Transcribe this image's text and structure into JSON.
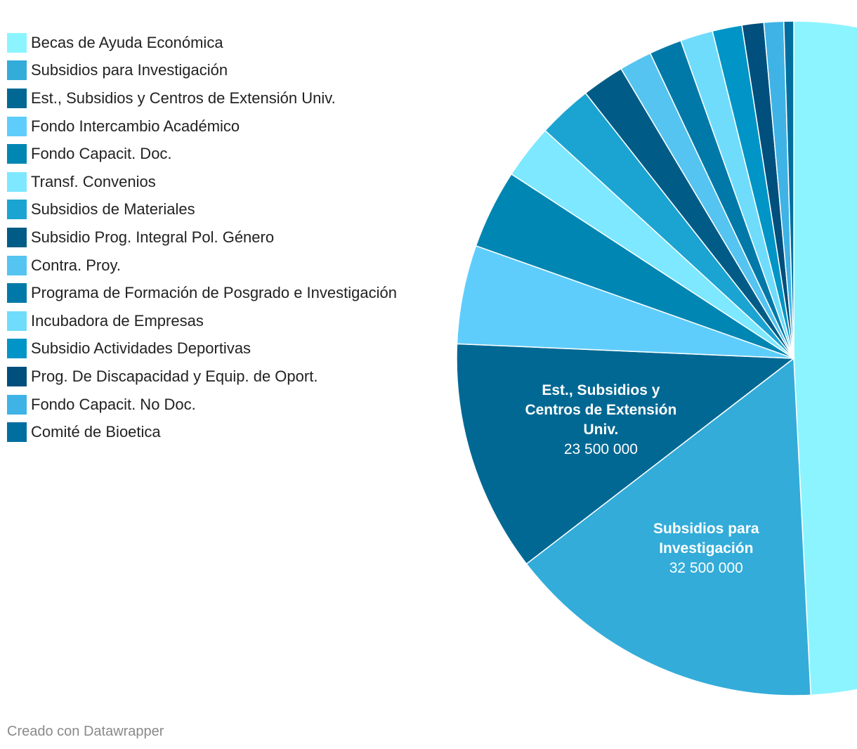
{
  "chart_data": {
    "type": "pie",
    "title": "",
    "slices": [
      {
        "label": "Becas de Ayuda Económica",
        "value": 104000000,
        "color": "#8cf4ff"
      },
      {
        "label": "Subsidios para Investigación",
        "value": 32500000,
        "color": "#33acd9",
        "display_value": "32 500 000"
      },
      {
        "label": "Est., Subsidios y Centros de Extensión Univ.",
        "value": 23500000,
        "color": "#006893",
        "display_value": "23 500 000"
      },
      {
        "label": "Fondo Intercambio Académico",
        "value": 10000000,
        "color": "#5fcdfc"
      },
      {
        "label": "Fondo Capacit. Doc.",
        "value": 8000000,
        "color": "#0086b3"
      },
      {
        "label": "Transf. Convenios",
        "value": 5500000,
        "color": "#7de8ff"
      },
      {
        "label": "Subsidios de Materiales",
        "value": 5500000,
        "color": "#1ba4d2"
      },
      {
        "label": "Subsidio Prog. Integral Pol. Género",
        "value": 4300000,
        "color": "#005c86"
      },
      {
        "label": "Contra. Proy.",
        "value": 3300000,
        "color": "#55c4f0"
      },
      {
        "label": "Programa de Formación de Posgrado e Investigación",
        "value": 3300000,
        "color": "#0079a8"
      },
      {
        "label": "Incubadora de Empresas",
        "value": 3300000,
        "color": "#70dcfb"
      },
      {
        "label": "Subsidio Actividades Deportivas",
        "value": 3000000,
        "color": "#0095c6"
      },
      {
        "label": "Prog. De Discapacidad y Equip. de Oport.",
        "value": 2200000,
        "color": "#004f7c"
      },
      {
        "label": "Fondo Capacit. No Doc.",
        "value": 2000000,
        "color": "#3fb3e6"
      },
      {
        "label": "Comité de Bioetica",
        "value": 1000000,
        "color": "#006f9f"
      }
    ],
    "labels_shown": [
      {
        "slice": 1,
        "name": "Subsidios para Investigación",
        "name_lines": [
          "Subsidios para",
          "Investigación"
        ],
        "value_text": "32 500 000"
      },
      {
        "slice": 2,
        "name": "Est., Subsidios y Centros de Extensión Univ.",
        "name_lines": [
          "Est., Subsidios y",
          "Centros de Extensión",
          "Univ."
        ],
        "value_text": "23 500 000"
      }
    ],
    "legend_position": "top-left"
  },
  "footer": {
    "credit": "Creado con Datawrapper"
  }
}
